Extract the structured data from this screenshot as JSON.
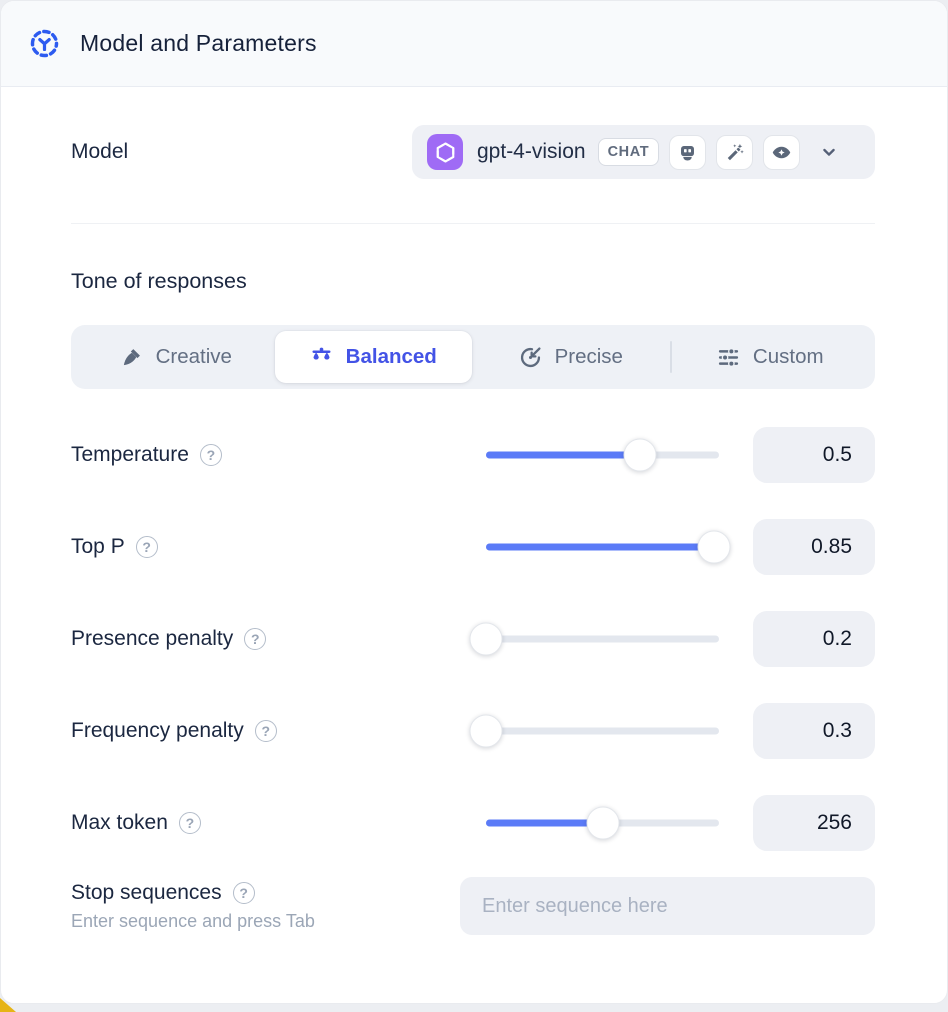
{
  "header": {
    "title": "Model and Parameters",
    "icon": "model-hub-icon"
  },
  "model_row": {
    "label": "Model",
    "selected_model": {
      "name": "gpt-4-vision",
      "provider_icon": "openai-logo",
      "type_badge": "CHAT",
      "capability_icons": [
        "robot-icon",
        "magic-wand-icon",
        "vision-eye-icon"
      ]
    }
  },
  "tone": {
    "heading": "Tone of responses",
    "options": [
      {
        "label": "Creative",
        "icon": "paintbrush-icon",
        "active": false
      },
      {
        "label": "Balanced",
        "icon": "scales-icon",
        "active": true
      },
      {
        "label": "Precise",
        "icon": "target-icon",
        "active": false
      },
      {
        "label": "Custom",
        "icon": "sliders-icon",
        "active": false
      }
    ]
  },
  "parameters": [
    {
      "label": "Temperature",
      "value": "0.5",
      "fill_pct": 66
    },
    {
      "label": "Top P",
      "value": "0.85",
      "fill_pct": 98
    },
    {
      "label": "Presence penalty",
      "value": "0.2",
      "fill_pct": 0
    },
    {
      "label": "Frequency penalty",
      "value": "0.3",
      "fill_pct": 0
    },
    {
      "label": "Max token",
      "value": "256",
      "fill_pct": 50
    }
  ],
  "stop_sequences": {
    "label": "Stop sequences",
    "helper": "Enter sequence and press Tab",
    "placeholder": "Enter sequence here"
  },
  "misc": {
    "help_glyph": "?"
  },
  "colors": {
    "accent_blue": "#5b7bf7",
    "active_indigo": "#4353e6",
    "header_icon_blue": "#2d5bf0",
    "field_bg": "#eef0f5",
    "openai_badge_purple": "#9f6bf5"
  }
}
